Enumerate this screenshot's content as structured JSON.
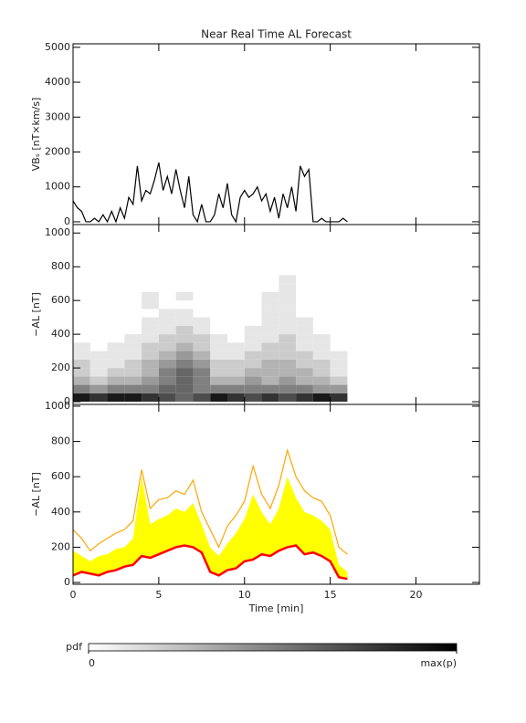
{
  "chart_data": [
    {
      "type": "line",
      "title": "Near Real Time AL Forecast",
      "ylabel": "VBₛ [nT×km/s]",
      "x": [
        0,
        0.25,
        0.5,
        0.75,
        1,
        1.25,
        1.5,
        1.75,
        2,
        2.25,
        2.5,
        2.75,
        3,
        3.25,
        3.5,
        3.75,
        4,
        4.25,
        4.5,
        4.75,
        5,
        5.25,
        5.5,
        5.75,
        6,
        6.25,
        6.5,
        6.75,
        7,
        7.25,
        7.5,
        7.75,
        8,
        8.25,
        8.5,
        8.75,
        9,
        9.25,
        9.5,
        9.75,
        10,
        10.25,
        10.5,
        10.75,
        11,
        11.25,
        11.5,
        11.75,
        12,
        12.25,
        12.5,
        12.75,
        13,
        13.25,
        13.5,
        13.75,
        14,
        14.25,
        14.5,
        14.75,
        15,
        15.25,
        15.5,
        15.75,
        16
      ],
      "series": [
        {
          "color": "#000000",
          "values": [
            600,
            400,
            300,
            0,
            0,
            100,
            0,
            200,
            0,
            300,
            0,
            400,
            100,
            700,
            500,
            1600,
            600,
            900,
            800,
            1200,
            1700,
            900,
            1300,
            800,
            1500,
            900,
            400,
            1300,
            200,
            0,
            500,
            0,
            0,
            200,
            800,
            400,
            1100,
            200,
            0,
            700,
            900,
            700,
            800,
            1000,
            600,
            800,
            300,
            700,
            100,
            800,
            400,
            1000,
            300,
            1600,
            1300,
            1500,
            0,
            0,
            100,
            0,
            0,
            0,
            0,
            100,
            0
          ]
        }
      ],
      "xlim": [
        0,
        23.7
      ],
      "xticks": [
        0,
        5,
        10,
        15,
        20
      ],
      "show_xticklabels": false,
      "ylim": [
        -80,
        5100
      ],
      "yticks": [
        0,
        1000,
        2000,
        3000,
        4000,
        5000
      ]
    },
    {
      "type": "heatmap",
      "ylabel": "−AL [nT]",
      "colormap": "gray_r",
      "xbins": [
        0,
        1,
        2,
        3,
        4,
        5,
        6,
        7,
        8,
        9,
        10,
        11,
        12,
        13,
        14,
        15,
        16
      ],
      "ybins": [
        0,
        50,
        100,
        150,
        200,
        250,
        300,
        350,
        400,
        450,
        500,
        550,
        600,
        650,
        700,
        750
      ],
      "z": [
        [
          0.9,
          0.8,
          0.9,
          0.9,
          0.8,
          0.7,
          0.6,
          0.7,
          0.9,
          0.8,
          0.7,
          0.8,
          0.7,
          0.8,
          0.9,
          0.8
        ],
        [
          0.5,
          0.4,
          0.5,
          0.5,
          0.5,
          0.6,
          0.6,
          0.5,
          0.5,
          0.5,
          0.5,
          0.5,
          0.5,
          0.5,
          0.4,
          0.4
        ],
        [
          0.3,
          0.2,
          0.3,
          0.3,
          0.4,
          0.5,
          0.6,
          0.5,
          0.3,
          0.3,
          0.4,
          0.3,
          0.4,
          0.3,
          0.3,
          0.2
        ],
        [
          0.2,
          0.1,
          0.2,
          0.2,
          0.3,
          0.5,
          0.6,
          0.5,
          0.2,
          0.2,
          0.3,
          0.3,
          0.3,
          0.3,
          0.2,
          0.1
        ],
        [
          0.2,
          0.1,
          0.1,
          0.2,
          0.3,
          0.4,
          0.5,
          0.4,
          0.2,
          0.2,
          0.2,
          0.3,
          0.3,
          0.2,
          0.2,
          0.1
        ],
        [
          0.1,
          0.1,
          0.1,
          0.1,
          0.2,
          0.3,
          0.4,
          0.3,
          0.1,
          0.1,
          0.2,
          0.2,
          0.2,
          0.2,
          0.1,
          0.1
        ],
        [
          0.1,
          0,
          0.1,
          0.1,
          0.2,
          0.2,
          0.3,
          0.2,
          0.1,
          0.1,
          0.1,
          0.2,
          0.2,
          0.1,
          0.1,
          0
        ],
        [
          0,
          0,
          0,
          0.1,
          0.1,
          0.2,
          0.2,
          0.2,
          0.1,
          0,
          0.1,
          0.1,
          0.2,
          0.1,
          0.1,
          0
        ],
        [
          0,
          0,
          0,
          0,
          0.1,
          0.1,
          0.2,
          0.1,
          0,
          0,
          0.1,
          0.1,
          0.1,
          0.1,
          0,
          0
        ],
        [
          0,
          0,
          0,
          0,
          0.1,
          0.1,
          0.1,
          0.1,
          0,
          0,
          0,
          0.1,
          0.1,
          0.1,
          0,
          0
        ],
        [
          0,
          0,
          0,
          0,
          0,
          0.1,
          0.1,
          0,
          0,
          0,
          0,
          0.1,
          0.1,
          0,
          0,
          0
        ],
        [
          0,
          0,
          0,
          0,
          0.1,
          0,
          0,
          0,
          0,
          0,
          0,
          0.1,
          0.1,
          0,
          0,
          0
        ],
        [
          0,
          0,
          0,
          0,
          0.1,
          0,
          0.1,
          0,
          0,
          0,
          0,
          0.1,
          0.1,
          0,
          0,
          0
        ],
        [
          0,
          0,
          0,
          0,
          0,
          0,
          0,
          0,
          0,
          0,
          0,
          0,
          0.1,
          0,
          0,
          0
        ],
        [
          0,
          0,
          0,
          0,
          0,
          0,
          0,
          0,
          0,
          0,
          0,
          0,
          0.1,
          0,
          0,
          0
        ]
      ],
      "xlim": [
        0,
        23.7
      ],
      "xticks": [
        0,
        5,
        10,
        15,
        20
      ],
      "show_xticklabels": false,
      "ylim": [
        -16,
        1050
      ],
      "yticks": [
        0,
        200,
        400,
        600,
        800,
        1000
      ]
    },
    {
      "type": "line",
      "ylabel": "−AL [nT]",
      "xlabel": "Time [min]",
      "x": [
        0,
        0.5,
        1,
        1.5,
        2,
        2.5,
        3,
        3.5,
        4,
        4.5,
        5,
        5.5,
        6,
        6.5,
        7,
        7.5,
        8,
        8.5,
        9,
        9.5,
        10,
        10.5,
        11,
        11.5,
        12,
        12.5,
        13,
        13.5,
        14,
        14.5,
        15,
        15.5,
        16
      ],
      "series": [
        {
          "color": "#ffff00",
          "fill": "to_next",
          "values": [
            180,
            150,
            120,
            150,
            160,
            190,
            200,
            250,
            600,
            330,
            360,
            380,
            420,
            400,
            450,
            330,
            200,
            150,
            220,
            280,
            360,
            500,
            400,
            330,
            420,
            600,
            480,
            400,
            380,
            350,
            300,
            100,
            60
          ]
        },
        {
          "color": "#ff0000",
          "values": [
            40,
            60,
            50,
            40,
            60,
            70,
            90,
            100,
            150,
            140,
            160,
            180,
            200,
            210,
            200,
            170,
            60,
            40,
            70,
            80,
            120,
            130,
            160,
            150,
            180,
            200,
            210,
            160,
            170,
            150,
            120,
            30,
            20
          ]
        },
        {
          "color": "#ffa500",
          "values": [
            300,
            250,
            180,
            220,
            250,
            280,
            300,
            350,
            640,
            420,
            470,
            480,
            520,
            500,
            580,
            400,
            300,
            200,
            320,
            380,
            460,
            660,
            500,
            420,
            550,
            750,
            600,
            520,
            480,
            460,
            380,
            200,
            160
          ]
        }
      ],
      "xlim": [
        0,
        23.7
      ],
      "xticks": [
        0,
        5,
        10,
        15,
        20
      ],
      "show_xticklabels": true,
      "ylim": [
        -10,
        1010
      ],
      "yticks": [
        0,
        200,
        400,
        600,
        800,
        1000
      ]
    }
  ],
  "colorbar": {
    "label": "pdf",
    "ticks": [
      0,
      {
        "value": 1,
        "label": "max(p)"
      }
    ]
  }
}
